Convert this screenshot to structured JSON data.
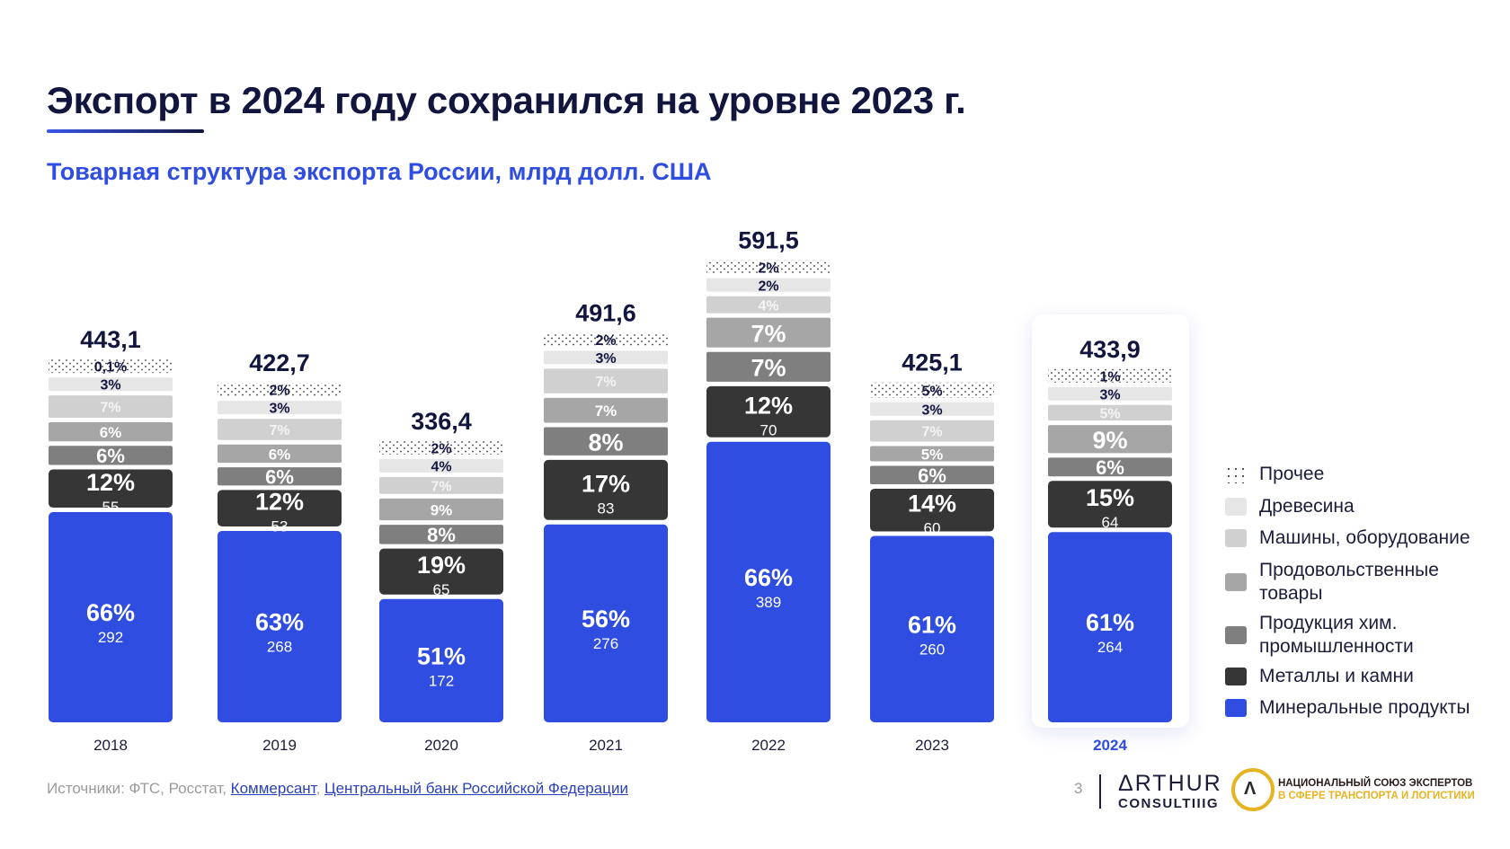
{
  "header": {
    "title": "Экспорт в 2024 году сохранился на уровне 2023 г.",
    "subtitle": "Товарная структура экспорта России, млрд долл. США"
  },
  "colors": {
    "accent": "#2f4de0",
    "title": "#12163f"
  },
  "chart_data": {
    "type": "bar",
    "stacked": true,
    "title": "Товарная структура экспорта России, млрд долл. США",
    "xlabel": "",
    "ylabel": "",
    "grid": false,
    "legend_position": "right",
    "highlighted_category": "2024",
    "categories": [
      "2018",
      "2019",
      "2020",
      "2021",
      "2022",
      "2023",
      "2024"
    ],
    "totals": [
      "443,1",
      "422,7",
      "336,4",
      "491,6",
      "591,5",
      "425,1",
      "433,9"
    ],
    "total_values": [
      443.1,
      422.7,
      336.4,
      491.6,
      591.5,
      425.1,
      433.9
    ],
    "series": [
      {
        "name": "Минеральные продукты",
        "color": "#2f4de0",
        "pattern": "solid",
        "percents": [
          "66%",
          "63%",
          "51%",
          "56%",
          "66%",
          "61%",
          "61%"
        ],
        "percent_values": [
          66,
          63,
          51,
          56,
          66,
          61,
          61
        ],
        "values": [
          292,
          268,
          172,
          276,
          389,
          260,
          264
        ]
      },
      {
        "name": "Металлы и камни",
        "color": "#363636",
        "pattern": "solid",
        "percents": [
          "12%",
          "12%",
          "19%",
          "17%",
          "12%",
          "14%",
          "15%"
        ],
        "percent_values": [
          12,
          12,
          19,
          17,
          12,
          14,
          15
        ],
        "values": [
          55,
          53,
          65,
          83,
          70,
          60,
          64
        ]
      },
      {
        "name": "Продукция хим. промышленности",
        "color": "#7f7f7f",
        "pattern": "solid",
        "percents": [
          "6%",
          "6%",
          "8%",
          "8%",
          "7%",
          "6%",
          "6%"
        ],
        "percent_values": [
          6,
          6,
          8,
          8,
          7,
          6,
          6
        ]
      },
      {
        "name": "Продовольственные товары",
        "color": "#a6a6a6",
        "pattern": "solid",
        "percents": [
          "6%",
          "6%",
          "9%",
          "7%",
          "7%",
          "5%",
          "9%"
        ],
        "percent_values": [
          6,
          6,
          9,
          7,
          7,
          5,
          9
        ]
      },
      {
        "name": "Машины, оборудование",
        "color": "#d0d0d0",
        "pattern": "solid",
        "percents": [
          "7%",
          "7%",
          "7%",
          "7%",
          "4%",
          "7%",
          "5%"
        ],
        "percent_values": [
          7,
          7,
          7,
          7,
          4,
          7,
          5
        ]
      },
      {
        "name": "Древесина",
        "color": "#e6e6e6",
        "pattern": "solid",
        "percents": [
          "3%",
          "3%",
          "4%",
          "3%",
          "2%",
          "3%",
          "3%"
        ],
        "percent_values": [
          3,
          3,
          4,
          3,
          2,
          3,
          3
        ]
      },
      {
        "name": "Прочее",
        "color": "#ffffff",
        "pattern": "dots",
        "percents": [
          "0,1%",
          "2%",
          "2%",
          "2%",
          "2%",
          "5%",
          "1%"
        ],
        "percent_values": [
          0.1,
          2,
          2,
          2,
          2,
          5,
          1
        ]
      }
    ]
  },
  "legend": [
    {
      "label_lines": [
        "Прочее"
      ],
      "color": "#ffffff",
      "pattern": "dots"
    },
    {
      "label_lines": [
        "Древесина"
      ],
      "color": "#e6e6e6",
      "pattern": "solid"
    },
    {
      "label_lines": [
        "Машины, оборудование"
      ],
      "color": "#d0d0d0",
      "pattern": "solid"
    },
    {
      "label_lines": [
        "Продовольственные",
        "товары"
      ],
      "color": "#a6a6a6",
      "pattern": "solid"
    },
    {
      "label_lines": [
        "Продукция хим.",
        "промышленности"
      ],
      "color": "#7f7f7f",
      "pattern": "solid"
    },
    {
      "label_lines": [
        "Металлы и камни"
      ],
      "color": "#363636",
      "pattern": "solid"
    },
    {
      "label_lines": [
        "Минеральные продукты"
      ],
      "color": "#2f4de0",
      "pattern": "solid"
    }
  ],
  "footer": {
    "sources_prefix": "Источники: ФТС, Росстат, ",
    "link1": "Коммерсант",
    "separator": ", ",
    "link2": "Центральный банк Российской Федерации",
    "page_number": "3",
    "arthur_line1": "ΔRTHUR",
    "arthur_line2": "CONSULTIIIG",
    "nse_line1": "НАЦИОНАЛЬНЫЙ СОЮЗ ЭКСПЕРТОВ",
    "nse_line2": "В СФЕРЕ ТРАНСПОРТА И ЛОГИСТИКИ",
    "nse_logo_glyph": "Λ"
  }
}
